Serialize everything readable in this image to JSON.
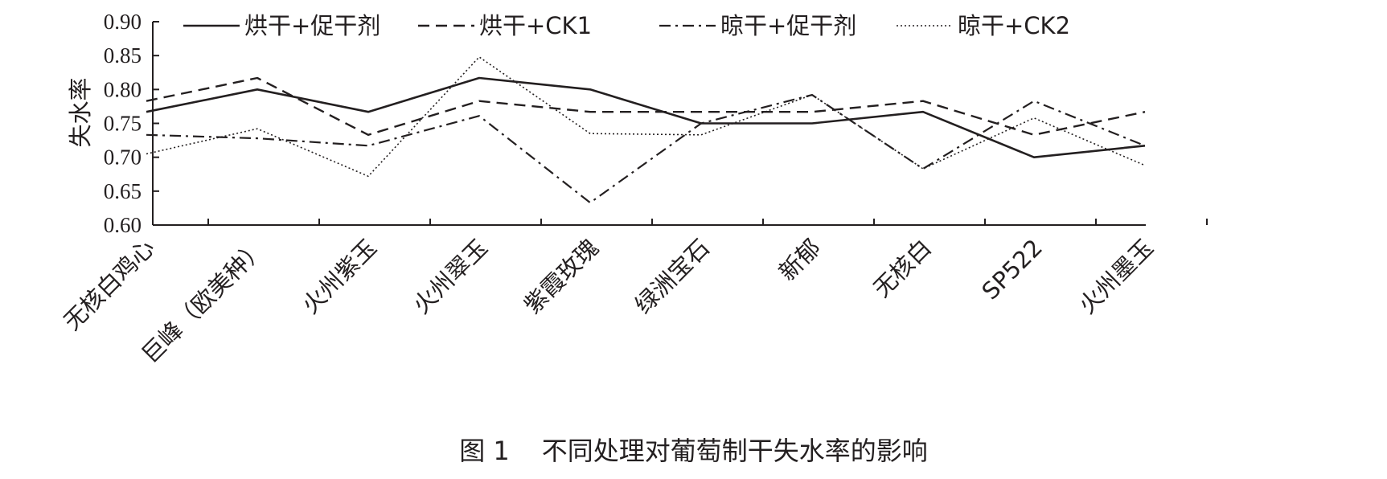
{
  "chart_data": {
    "type": "line",
    "ylabel": "失水率",
    "ylim": [
      0.6,
      0.9
    ],
    "yticks": [
      "0.60",
      "0.65",
      "0.70",
      "0.75",
      "0.80",
      "0.85",
      "0.90"
    ],
    "categories": [
      "无核白鸡心",
      "巨峰（欧美种）",
      "火州紫玉",
      "火州翠玉",
      "紫霞玫瑰",
      "绿洲宝石",
      "新郁",
      "无核白",
      "SP522",
      "火州墨玉"
    ],
    "legend_position": "top",
    "series": [
      {
        "name": "烘干+促干剂",
        "style": "solid",
        "values": [
          0.767,
          0.8,
          0.767,
          0.817,
          0.8,
          0.75,
          0.75,
          0.767,
          0.7,
          0.717
        ]
      },
      {
        "name": "烘干+CK1",
        "style": "dashed",
        "values": [
          0.783,
          0.817,
          0.733,
          0.783,
          0.767,
          0.767,
          0.767,
          0.783,
          0.733,
          0.767
        ]
      },
      {
        "name": "晾干+促干剂",
        "style": "dashdot",
        "values": [
          0.733,
          0.728,
          0.717,
          0.761,
          0.633,
          0.75,
          0.792,
          0.683,
          0.783,
          0.717
        ]
      },
      {
        "name": "晾干+CK2",
        "style": "dotted",
        "values": [
          0.705,
          0.742,
          0.672,
          0.848,
          0.735,
          0.733,
          0.792,
          0.683,
          0.758,
          0.688
        ]
      }
    ]
  },
  "caption": {
    "figure_number": "图 1",
    "title": "不同处理对葡萄制干失水率的影响"
  }
}
